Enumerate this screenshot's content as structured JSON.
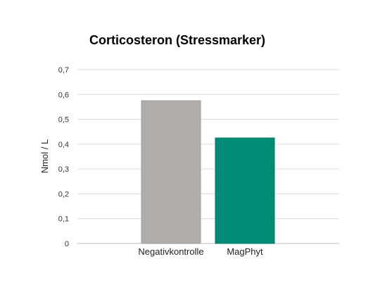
{
  "chart_data": {
    "type": "bar",
    "title": "Corticosteron (Stressmarker)",
    "xlabel": "",
    "ylabel": "Nmol / L",
    "ylim": [
      0,
      0.7
    ],
    "y_ticks": [
      "0",
      "0,1",
      "0,2",
      "0,3",
      "0,4",
      "0,5",
      "0,6",
      "0,7"
    ],
    "grid": true,
    "categories": [
      "Negativkontrolle",
      "MagPhyt"
    ],
    "values": [
      0.575,
      0.425
    ],
    "colors": [
      "#b1adaa",
      "#008c76"
    ]
  }
}
